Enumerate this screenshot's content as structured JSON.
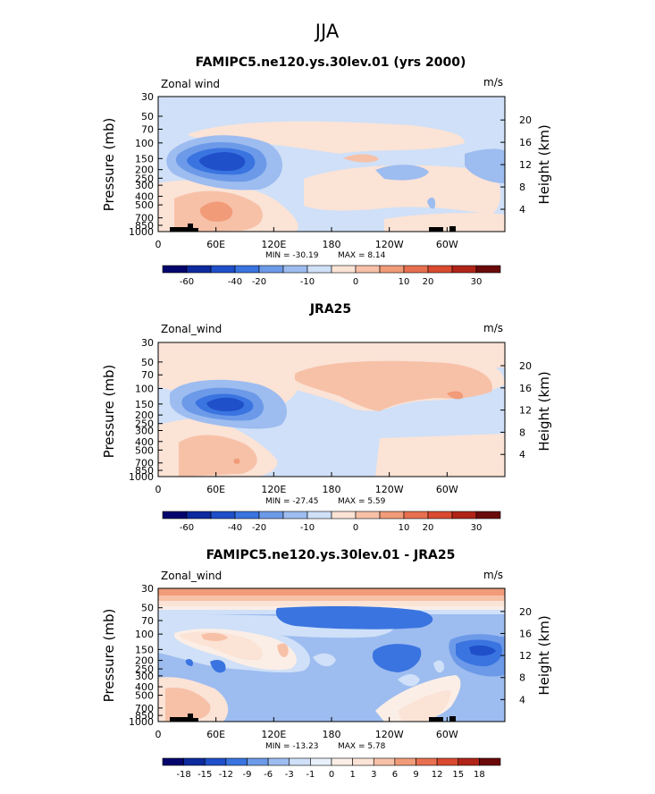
{
  "figure": {
    "season": "JJA"
  },
  "chart_data": [
    {
      "type": "contour",
      "title": "FAMIPC5.ne120.ys.30lev.01 (yrs 2000)",
      "left_label": "Zonal wind",
      "units": "m/s",
      "xlabel": "",
      "ylabel": "Pressure (mb)",
      "ylabel_right": "Height (km)",
      "x_ticks": [
        "0",
        "60E",
        "120E",
        "180",
        "120W",
        "60W"
      ],
      "y_ticks": [
        "30",
        "50",
        "70",
        "100",
        "150",
        "200",
        "250",
        "300",
        "400",
        "500",
        "700",
        "850",
        "1000"
      ],
      "height_ticks": [
        "20",
        "16",
        "12",
        "8",
        "4"
      ],
      "min_label": "MIN = -30.19",
      "max_label": "MAX =    8.14",
      "min": -30.19,
      "max": 8.14,
      "colorbar_ticks": [
        "-60",
        "-40",
        "-20",
        "-10",
        "0",
        "10",
        "20",
        "30"
      ],
      "colorbar_colors": [
        "#05056e",
        "#0d2a9e",
        "#1f4fc9",
        "#3a74e0",
        "#6c9ae8",
        "#9dbcf0",
        "#cfe0f8",
        "#fbe3d6",
        "#f7c1a8",
        "#f19b78",
        "#e87050",
        "#d94a30",
        "#b02418",
        "#6a0a0a"
      ]
    },
    {
      "type": "contour",
      "title": "JRA25",
      "left_label": "Zonal_wind",
      "units": "m/s",
      "xlabel": "",
      "ylabel": "Pressure (mb)",
      "ylabel_right": "Height (km)",
      "x_ticks": [
        "0",
        "60E",
        "120E",
        "180",
        "120W",
        "60W"
      ],
      "y_ticks": [
        "30",
        "50",
        "70",
        "100",
        "150",
        "200",
        "250",
        "300",
        "400",
        "500",
        "700",
        "850",
        "1000"
      ],
      "height_ticks": [
        "20",
        "16",
        "12",
        "8",
        "4"
      ],
      "min_label": "MIN = -27.45",
      "max_label": "MAX =    5.59",
      "min": -27.45,
      "max": 5.59,
      "colorbar_ticks": [
        "-60",
        "-40",
        "-20",
        "-10",
        "0",
        "10",
        "20",
        "30"
      ],
      "colorbar_colors": [
        "#05056e",
        "#0d2a9e",
        "#1f4fc9",
        "#3a74e0",
        "#6c9ae8",
        "#9dbcf0",
        "#cfe0f8",
        "#fbe3d6",
        "#f7c1a8",
        "#f19b78",
        "#e87050",
        "#d94a30",
        "#b02418",
        "#6a0a0a"
      ]
    },
    {
      "type": "contour",
      "title": "FAMIPC5.ne120.ys.30lev.01 - JRA25",
      "left_label": "Zonal_wind",
      "units": "m/s",
      "xlabel": "",
      "ylabel": "Pressure (mb)",
      "ylabel_right": "Height (km)",
      "x_ticks": [
        "0",
        "60E",
        "120E",
        "180",
        "120W",
        "60W"
      ],
      "y_ticks": [
        "30",
        "50",
        "70",
        "100",
        "150",
        "200",
        "250",
        "300",
        "400",
        "500",
        "700",
        "850",
        "1000"
      ],
      "height_ticks": [
        "20",
        "16",
        "12",
        "8",
        "4"
      ],
      "min_label": "MIN = -13.23",
      "max_label": "MAX =    5.78",
      "min": -13.23,
      "max": 5.78,
      "colorbar_ticks": [
        "-18",
        "-15",
        "-12",
        "-9",
        "-6",
        "-3",
        "-1",
        "0",
        "1",
        "3",
        "6",
        "9",
        "12",
        "15",
        "18"
      ],
      "colorbar_colors": [
        "#05056e",
        "#0d2a9e",
        "#1f4fc9",
        "#3a74e0",
        "#6c9ae8",
        "#9dbcf0",
        "#cfe0f8",
        "#e8f0fb",
        "#fbeee6",
        "#fbe3d6",
        "#f7c1a8",
        "#f19b78",
        "#e87050",
        "#d94a30",
        "#b02418",
        "#6a0a0a"
      ]
    }
  ]
}
